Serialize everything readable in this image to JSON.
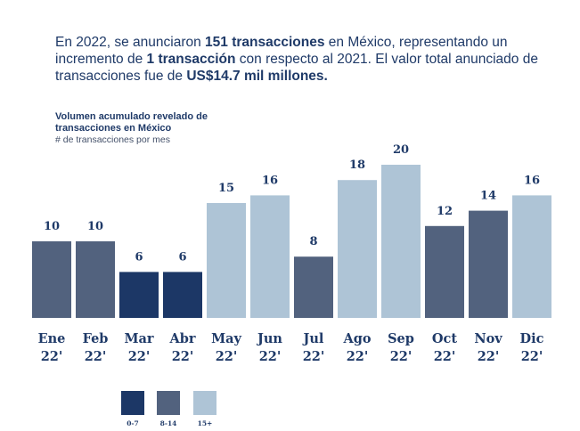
{
  "intro": {
    "p1": "En 2022, se anunciaron ",
    "b1": "151 transacciones",
    "p2": " en México, representando un incremento de ",
    "b2": "1 transacción",
    "p3": " con respecto al 2021. El valor total anunciado de transacciones fue de ",
    "b3": "US$14.7 mil millones."
  },
  "chart_data": {
    "type": "bar",
    "title_line1": "Volumen acumulado revelado de",
    "title_line2": "transacciones en México",
    "subtitle": "# de transacciones por mes",
    "categories": [
      [
        "Ene",
        "22'"
      ],
      [
        "Feb",
        "22'"
      ],
      [
        "Mar",
        "22'"
      ],
      [
        "Abr",
        "22'"
      ],
      [
        "May",
        "22'"
      ],
      [
        "Jun",
        "22'"
      ],
      [
        "Jul",
        "22'"
      ],
      [
        "Ago",
        "22'"
      ],
      [
        "Sep",
        "22'"
      ],
      [
        "Oct",
        "22'"
      ],
      [
        "Nov",
        "22'"
      ],
      [
        "Dic",
        "22'"
      ]
    ],
    "values": [
      10,
      10,
      6,
      6,
      15,
      16,
      8,
      18,
      20,
      12,
      14,
      16
    ],
    "ylim": [
      0,
      20
    ],
    "grid": false,
    "legend_position": "bottom-left",
    "legend": [
      {
        "label": "0-7",
        "color": "#1c3766"
      },
      {
        "label": "8-14",
        "color": "#52627e"
      },
      {
        "label": "15+",
        "color": "#aec4d6"
      }
    ]
  }
}
